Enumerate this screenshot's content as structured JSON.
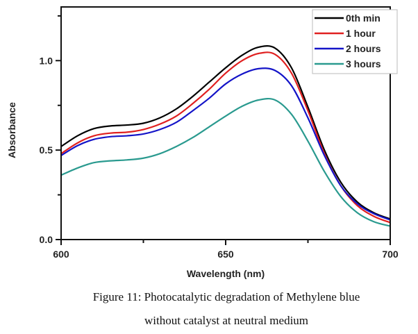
{
  "chart_data": {
    "type": "line",
    "title": "",
    "xlabel": "Wavelength (nm)",
    "ylabel": "Absorbance",
    "xlim": [
      600,
      700
    ],
    "ylim": [
      0.0,
      1.3
    ],
    "xticks": [
      600,
      650,
      700
    ],
    "xtick_labels": [
      "600",
      "650",
      "700"
    ],
    "yticks": [
      0.0,
      0.5,
      1.0
    ],
    "ytick_labels": [
      "0.0",
      "0.5",
      "1.0"
    ],
    "legend_position": "top-right",
    "grid": false,
    "x": [
      600,
      605,
      610,
      615,
      620,
      625,
      630,
      635,
      640,
      645,
      650,
      655,
      660,
      665,
      670,
      675,
      680,
      685,
      690,
      695,
      700
    ],
    "series": [
      {
        "name": "0th min",
        "color": "#000000",
        "values": [
          0.52,
          0.58,
          0.62,
          0.635,
          0.64,
          0.65,
          0.68,
          0.73,
          0.8,
          0.88,
          0.96,
          1.03,
          1.075,
          1.07,
          0.96,
          0.74,
          0.5,
          0.32,
          0.21,
          0.15,
          0.115
        ]
      },
      {
        "name": "1 hour",
        "color": "#e02020",
        "values": [
          0.48,
          0.54,
          0.58,
          0.595,
          0.6,
          0.615,
          0.645,
          0.69,
          0.76,
          0.84,
          0.93,
          1.0,
          1.04,
          1.035,
          0.93,
          0.72,
          0.48,
          0.3,
          0.19,
          0.13,
          0.095
        ]
      },
      {
        "name": "2 hours",
        "color": "#1414c8",
        "values": [
          0.47,
          0.525,
          0.56,
          0.575,
          0.58,
          0.59,
          0.615,
          0.655,
          0.72,
          0.79,
          0.87,
          0.925,
          0.955,
          0.945,
          0.86,
          0.68,
          0.47,
          0.3,
          0.2,
          0.145,
          0.11
        ]
      },
      {
        "name": "3 hours",
        "color": "#2a9a8f",
        "values": [
          0.36,
          0.4,
          0.43,
          0.44,
          0.445,
          0.455,
          0.48,
          0.52,
          0.57,
          0.63,
          0.69,
          0.745,
          0.78,
          0.78,
          0.7,
          0.55,
          0.38,
          0.24,
          0.15,
          0.1,
          0.075
        ]
      }
    ]
  },
  "caption": {
    "line1": "Figure 11: Photocatalytic degradation of Methylene blue",
    "line2": "without catalyst at neutral medium"
  }
}
